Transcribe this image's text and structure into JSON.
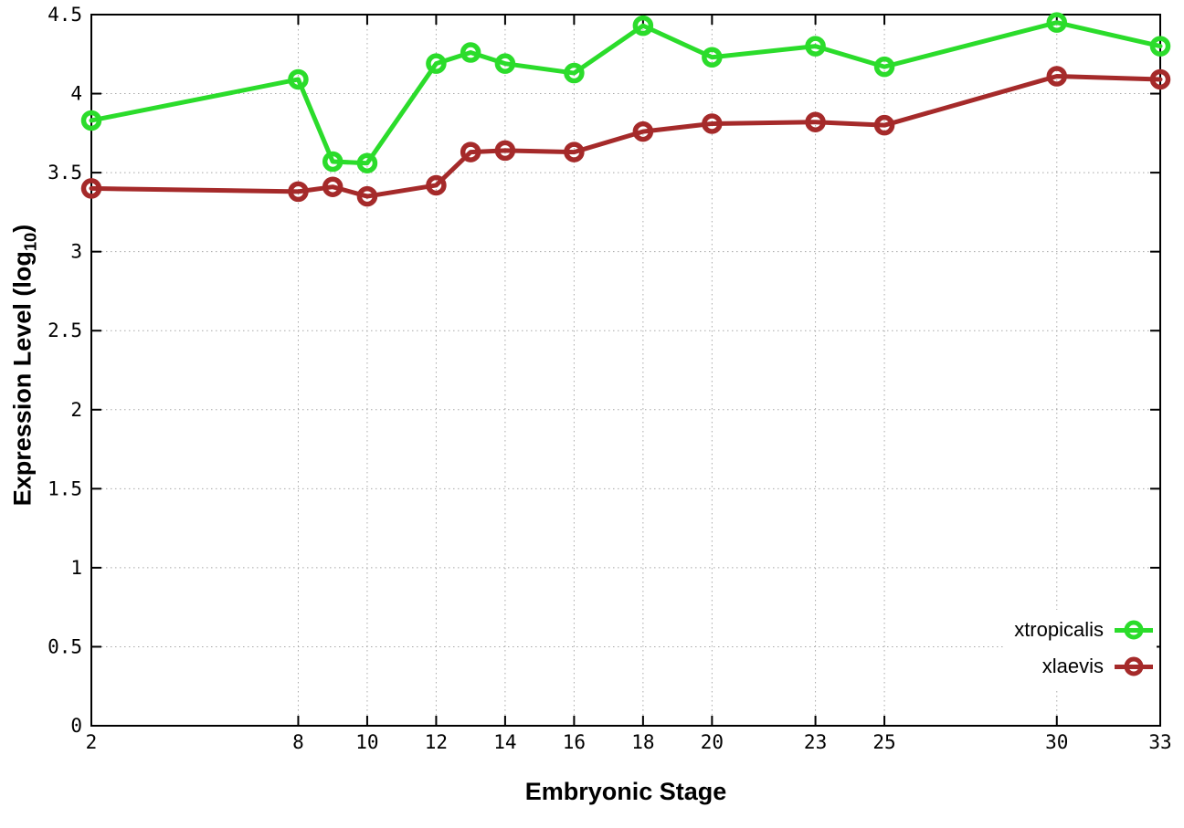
{
  "chart_data": {
    "type": "line",
    "title": "",
    "xlabel": "Embryonic Stage",
    "ylabel": "Expression Level (log10)",
    "xlim": [
      2,
      33
    ],
    "ylim": [
      0,
      4.5
    ],
    "grid": true,
    "grid_style": "dotted",
    "legend_position": "bottom-right",
    "x_ticks": [
      2,
      8,
      10,
      12,
      14,
      16,
      18,
      20,
      23,
      25,
      30,
      33
    ],
    "y_ticks": [
      "0",
      "0.5",
      "1",
      "1.5",
      "2",
      "2.5",
      "3",
      "3.5",
      "4",
      "4.5"
    ],
    "x": [
      2,
      8,
      9,
      10,
      12,
      13,
      14,
      16,
      18,
      20,
      23,
      25,
      30,
      33
    ],
    "series": [
      {
        "name": "xtropicalis",
        "color": "#2bdc2b",
        "marker": "open-circle",
        "values": [
          3.83,
          4.09,
          3.57,
          3.56,
          4.19,
          4.26,
          4.19,
          4.13,
          4.43,
          4.23,
          4.3,
          4.17,
          4.45,
          4.3
        ]
      },
      {
        "name": "xlaevis",
        "color": "#a52a2a",
        "marker": "open-circle",
        "values": [
          3.4,
          3.38,
          3.41,
          3.35,
          3.42,
          3.63,
          3.64,
          3.63,
          3.76,
          3.81,
          3.82,
          3.8,
          4.11,
          4.09
        ]
      }
    ]
  },
  "labels": {
    "ylabel_main": "Expression Level (log",
    "ylabel_sub": "10",
    "ylabel_close": ")",
    "xlabel": "Embryonic Stage"
  },
  "legend": {
    "items": [
      {
        "label": "xtropicalis",
        "color": "#2bdc2b"
      },
      {
        "label": "xlaevis",
        "color": "#a52a2a"
      }
    ]
  },
  "style": {
    "axis_color": "#000000",
    "grid_color": "#a8a8a8",
    "background": "#ffffff"
  }
}
